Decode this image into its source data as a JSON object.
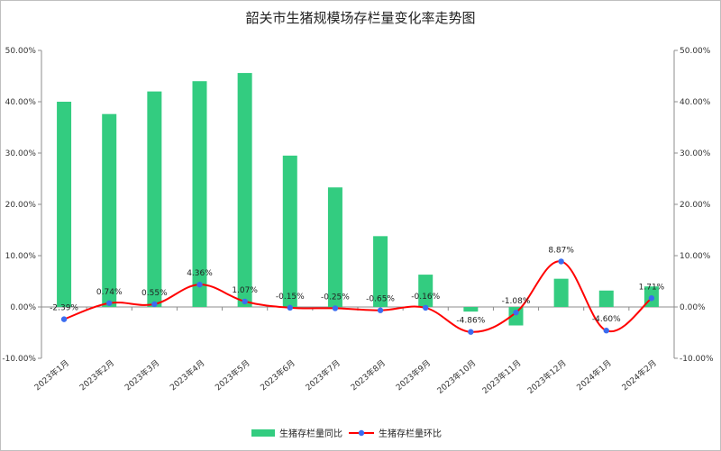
{
  "chart_data": {
    "type": "bar",
    "title": "韶关市生猪规模场存栏量变化率走势图",
    "categories": [
      "2023年1月",
      "2023年2月",
      "2023年3月",
      "2023年4月",
      "2023年5月",
      "2023年6月",
      "2023年7月",
      "2023年8月",
      "2023年9月",
      "2023年10月",
      "2023年11月",
      "2023年12月",
      "2024年1月",
      "2024年2月"
    ],
    "series": [
      {
        "name": "生猪存栏量同比",
        "type": "bar",
        "color": "#33cc80",
        "values": [
          40.0,
          37.6,
          42.0,
          44.0,
          45.6,
          29.5,
          23.3,
          13.8,
          6.3,
          -0.9,
          -3.6,
          5.5,
          3.2,
          4.0
        ]
      },
      {
        "name": "生猪存栏量环比",
        "type": "line",
        "color": "#ff0000",
        "marker_color": "#3b6cf0",
        "values": [
          -2.39,
          0.74,
          0.55,
          4.36,
          1.07,
          -0.15,
          -0.25,
          -0.65,
          -0.16,
          -4.86,
          -1.08,
          8.87,
          -4.6,
          1.71
        ],
        "labels": [
          "-2.39%",
          "0.74%",
          "0.55%",
          "4.36%",
          "1.07%",
          "-0.15%",
          "-0.25%",
          "-0.65%",
          "-0.16%",
          "-4.86%",
          "-1.08%",
          "8.87%",
          "-4.60%",
          "1.71%"
        ]
      }
    ],
    "ylim": [
      -10,
      50
    ],
    "y_ticks": [
      "50.00%",
      "40.00%",
      "30.00%",
      "20.00%",
      "10.00%",
      "0.00%",
      "-10.00%"
    ],
    "y_tick_values": [
      50,
      40,
      30,
      20,
      10,
      0,
      -10
    ],
    "secondary_axis": true,
    "grid": false,
    "legend_position": "bottom"
  }
}
